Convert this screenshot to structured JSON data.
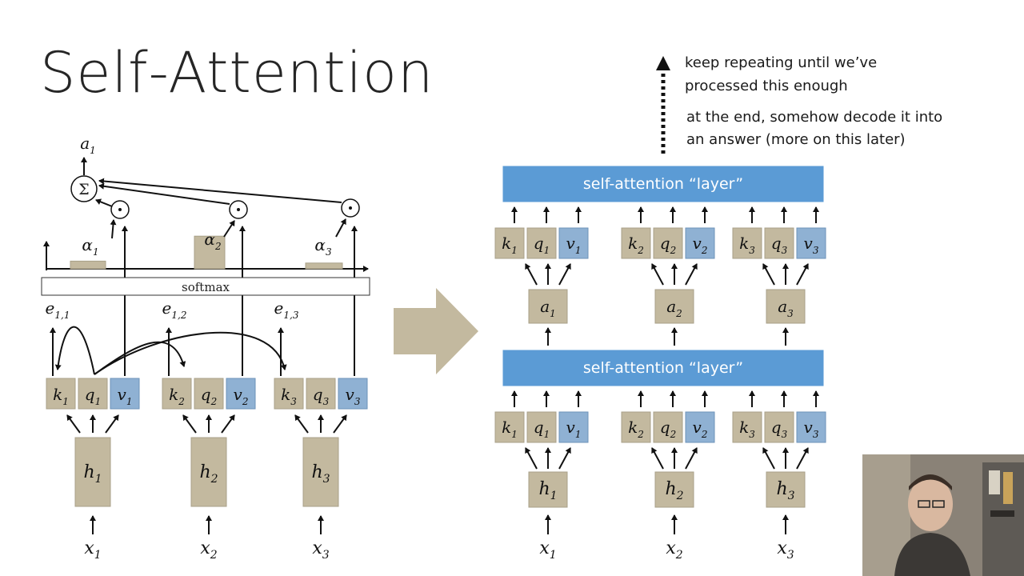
{
  "title": "Self-Attention",
  "left_diagram": {
    "output": "a",
    "output_sub": "1",
    "sum_symbol": "Σ",
    "dot_symbol": "⊙",
    "alpha_labels": [
      {
        "t": "α",
        "s": "1"
      },
      {
        "t": "α",
        "s": "2"
      },
      {
        "t": "α",
        "s": "3"
      }
    ],
    "alpha_weights": [
      0.2,
      0.85,
      0.15
    ],
    "softmax_label": "softmax",
    "e_labels": [
      {
        "t": "e",
        "s": "1,1"
      },
      {
        "t": "e",
        "s": "1,2"
      },
      {
        "t": "e",
        "s": "1,3"
      }
    ],
    "groups": [
      {
        "k": "k",
        "q": "q",
        "v": "v",
        "h": "h",
        "x": "x",
        "s": "1"
      },
      {
        "k": "k",
        "q": "q",
        "v": "v",
        "h": "h",
        "x": "x",
        "s": "2"
      },
      {
        "k": "k",
        "q": "q",
        "v": "v",
        "h": "h",
        "x": "x",
        "s": "3"
      }
    ]
  },
  "right_diagram": {
    "note_repeat": [
      "keep repeating until we’ve",
      "processed this enough"
    ],
    "note_decode": [
      "at the end, somehow decode it into",
      "an answer (more on this later)"
    ],
    "layer_label": "self-attention “layer”",
    "a_labels": [
      {
        "t": "a",
        "s": "1"
      },
      {
        "t": "a",
        "s": "2"
      },
      {
        "t": "a",
        "s": "3"
      }
    ],
    "h_labels": [
      {
        "t": "h",
        "s": "1"
      },
      {
        "t": "h",
        "s": "2"
      },
      {
        "t": "h",
        "s": "3"
      }
    ],
    "x_labels": [
      {
        "t": "x",
        "s": "1"
      },
      {
        "t": "x",
        "s": "2"
      },
      {
        "t": "x",
        "s": "3"
      }
    ]
  },
  "colors": {
    "box_fill": "#c3b99f",
    "box_stroke": "#a8a088",
    "v_fill": "#8fb1d3",
    "v_stroke": "#6e93ba",
    "layer_fill": "#5b9bd5",
    "big_arrow": "#c3b99f",
    "text": "#1a1a1a"
  }
}
